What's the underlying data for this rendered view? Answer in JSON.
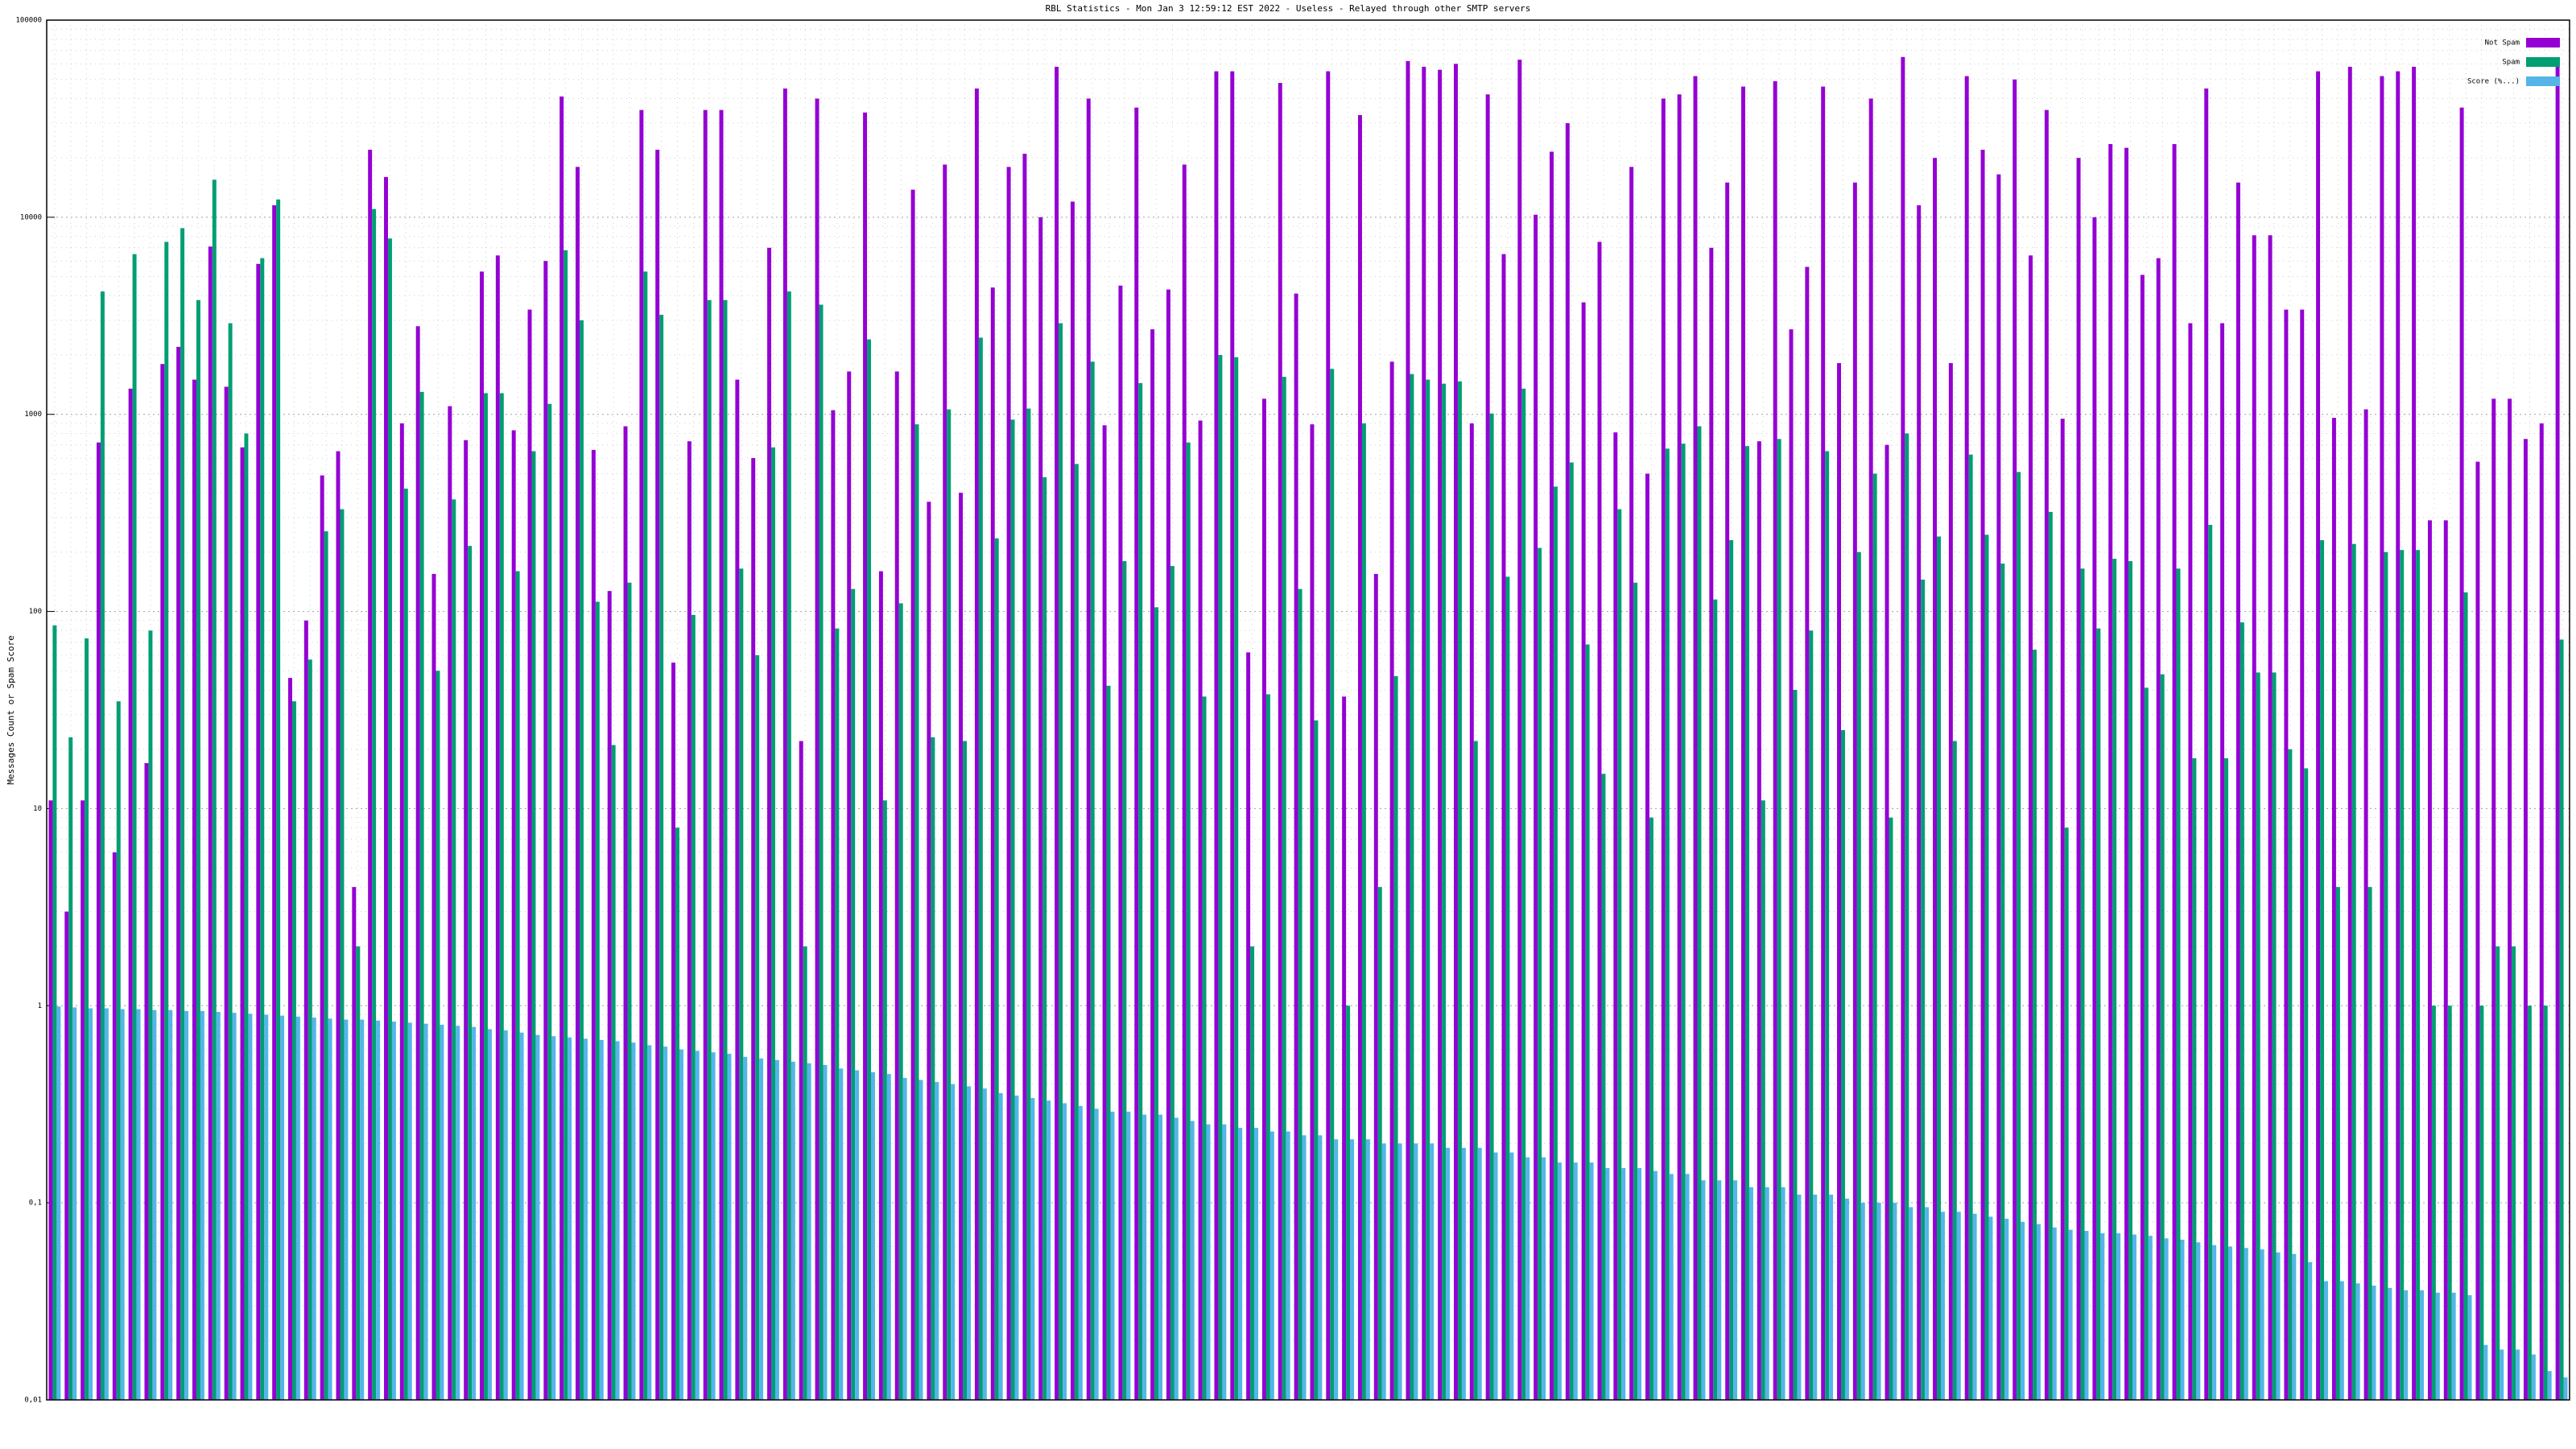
{
  "chart_data": {
    "type": "bar",
    "title": "RBL Statistics - Mon Jan  3 12:59:12 EST 2022 - Useless - Relayed through other SMTP servers",
    "y_label": "Messages Count or Spam Score",
    "log_y": true,
    "grid": true,
    "legend_position": "top-right",
    "ylim": [
      0.01,
      100000
    ],
    "yticks": [
      {
        "value": 0.01,
        "label": "0,01"
      },
      {
        "value": 0.1,
        "label": "0,1"
      },
      1,
      10,
      100,
      1000,
      10000,
      100000
    ],
    "categories": [
      null,
      null,
      null,
      null,
      null,
      null,
      null,
      null,
      null,
      null,
      null,
      null,
      null,
      null,
      null,
      null,
      null,
      null,
      null,
      null,
      null,
      null,
      null,
      null,
      null,
      null,
      null,
      null,
      null,
      null,
      null,
      null,
      null,
      null,
      null,
      null,
      null,
      null,
      null,
      null,
      null,
      null,
      null,
      null,
      null,
      null,
      null,
      null,
      null,
      null,
      null,
      null,
      null,
      null,
      null,
      null,
      null,
      null,
      null,
      null,
      null,
      null,
      null,
      null,
      null,
      null,
      null,
      null,
      null,
      null,
      null,
      null,
      null,
      null,
      null,
      null,
      null,
      null,
      null,
      null,
      null,
      null,
      null,
      null,
      null,
      null,
      null,
      null,
      null,
      null,
      null,
      null,
      null,
      null,
      null,
      null,
      null,
      null,
      null,
      null,
      null,
      null,
      null,
      null,
      null,
      null,
      null,
      null,
      null,
      null,
      null,
      null,
      null,
      null,
      null,
      null,
      null,
      null,
      null,
      null,
      null,
      null,
      null,
      null,
      null,
      null,
      null,
      null,
      null,
      null,
      null,
      null,
      null,
      null,
      null,
      null,
      null,
      null,
      null,
      null,
      null,
      null,
      null,
      null,
      null,
      null,
      null,
      null,
      null,
      null,
      null,
      null,
      null,
      null,
      null,
      null,
      null,
      null
    ],
    "series": [
      {
        "name": "Not Spam",
        "color": "#9400d3",
        "values": [
          11,
          3,
          11,
          720,
          6,
          1350,
          17,
          1800,
          2200,
          1500,
          7100,
          1380,
          680,
          5800,
          11500,
          46,
          90,
          490,
          650,
          4,
          22000,
          16000,
          900,
          2800,
          155,
          1100,
          740,
          5300,
          6400,
          830,
          3400,
          6000,
          41000,
          18000,
          660,
          127,
          870,
          35000,
          22000,
          55,
          730,
          35000,
          35000,
          1500,
          600,
          7000,
          45000,
          22,
          40000,
          1050,
          1650,
          34000,
          160,
          1650,
          13800,
          360,
          18500,
          400,
          45000,
          4400,
          18000,
          21000,
          10000,
          58000,
          12000,
          40000,
          880,
          4500,
          36000,
          2700,
          4300,
          18500,
          930,
          55000,
          55000,
          62,
          1200,
          48000,
          4100,
          890,
          55000,
          37,
          33000,
          155,
          1850,
          62000,
          58000,
          56000,
          60000,
          900,
          42000,
          6500,
          63000,
          10300,
          21500,
          30000,
          3700,
          7500,
          810,
          18000,
          500,
          40000,
          42000,
          52000,
          7000,
          15000,
          46000,
          730,
          49000,
          2700,
          5600,
          46000,
          1820,
          15000,
          40000,
          700,
          65000,
          11500,
          20000,
          1820,
          52000,
          22000,
          16500,
          50000,
          6400,
          35000,
          950,
          20000,
          10000,
          23500,
          22500,
          5100,
          6200,
          23500,
          2900,
          45000,
          2900,
          15000,
          8100,
          8100,
          3400,
          3400,
          55000,
          960,
          58000,
          1060,
          52000,
          55000,
          58000,
          290,
          290,
          36000,
          575,
          1200,
          1200,
          750,
          900,
          64000
        ]
      },
      {
        "name": "Spam",
        "color": "#009e73",
        "values": [
          85,
          23,
          73,
          4200,
          35,
          6500,
          80,
          7500,
          8800,
          3800,
          15500,
          2900,
          800,
          6200,
          12300,
          35,
          57,
          255,
          330,
          2,
          11000,
          7800,
          420,
          1300,
          50,
          370,
          215,
          1280,
          1280,
          160,
          650,
          1130,
          6800,
          3000,
          112,
          21,
          140,
          5300,
          3200,
          8,
          96,
          3800,
          3800,
          165,
          60,
          680,
          4200,
          2,
          3600,
          82,
          130,
          2400,
          11,
          110,
          890,
          23,
          1060,
          22,
          2450,
          235,
          940,
          1070,
          480,
          2900,
          560,
          1850,
          42,
          180,
          1440,
          105,
          170,
          720,
          37,
          2000,
          1950,
          2,
          38,
          1550,
          130,
          28,
          1700,
          1,
          900,
          4,
          47,
          1600,
          1500,
          1430,
          1470,
          22,
          1010,
          150,
          1350,
          210,
          430,
          570,
          68,
          15,
          330,
          140,
          9,
          670,
          710,
          870,
          115,
          230,
          690,
          11,
          750,
          40,
          80,
          650,
          25,
          200,
          500,
          9,
          800,
          145,
          240,
          22,
          625,
          245,
          175,
          510,
          64,
          320,
          8,
          165,
          82,
          185,
          180,
          41,
          48,
          165,
          18,
          275,
          18,
          88,
          49,
          49,
          20,
          16,
          230,
          4,
          220,
          4,
          200,
          205,
          205,
          1,
          1,
          125,
          1,
          2,
          2,
          1,
          1,
          72
        ]
      },
      {
        "name": "Score (%...)",
        "color": "#56b4e9",
        "values": [
          0.99,
          0.98,
          0.97,
          0.97,
          0.96,
          0.96,
          0.95,
          0.95,
          0.94,
          0.94,
          0.93,
          0.92,
          0.91,
          0.9,
          0.89,
          0.88,
          0.87,
          0.86,
          0.85,
          0.85,
          0.84,
          0.83,
          0.82,
          0.81,
          0.8,
          0.79,
          0.78,
          0.76,
          0.75,
          0.73,
          0.71,
          0.7,
          0.69,
          0.68,
          0.67,
          0.66,
          0.65,
          0.63,
          0.62,
          0.6,
          0.59,
          0.58,
          0.57,
          0.55,
          0.54,
          0.53,
          0.52,
          0.51,
          0.5,
          0.48,
          0.47,
          0.46,
          0.45,
          0.43,
          0.42,
          0.41,
          0.4,
          0.39,
          0.38,
          0.36,
          0.35,
          0.34,
          0.33,
          0.32,
          0.31,
          0.3,
          0.29,
          0.29,
          0.28,
          0.28,
          0.27,
          0.26,
          0.25,
          0.25,
          0.24,
          0.24,
          0.23,
          0.23,
          0.22,
          0.22,
          0.21,
          0.21,
          0.21,
          0.2,
          0.2,
          0.2,
          0.2,
          0.19,
          0.19,
          0.19,
          0.18,
          0.18,
          0.17,
          0.17,
          0.16,
          0.16,
          0.16,
          0.15,
          0.15,
          0.15,
          0.145,
          0.14,
          0.14,
          0.13,
          0.13,
          0.13,
          0.12,
          0.12,
          0.12,
          0.11,
          0.11,
          0.11,
          0.105,
          0.1,
          0.1,
          0.1,
          0.095,
          0.095,
          0.09,
          0.09,
          0.088,
          0.085,
          0.083,
          0.08,
          0.078,
          0.075,
          0.073,
          0.072,
          0.07,
          0.07,
          0.069,
          0.068,
          0.066,
          0.065,
          0.063,
          0.061,
          0.06,
          0.059,
          0.058,
          0.056,
          0.055,
          0.05,
          0.04,
          0.04,
          0.039,
          0.038,
          0.037,
          0.036,
          0.036,
          0.035,
          0.035,
          0.034,
          0.019,
          0.018,
          0.018,
          0.017,
          0.014,
          0.013
        ]
      }
    ]
  }
}
